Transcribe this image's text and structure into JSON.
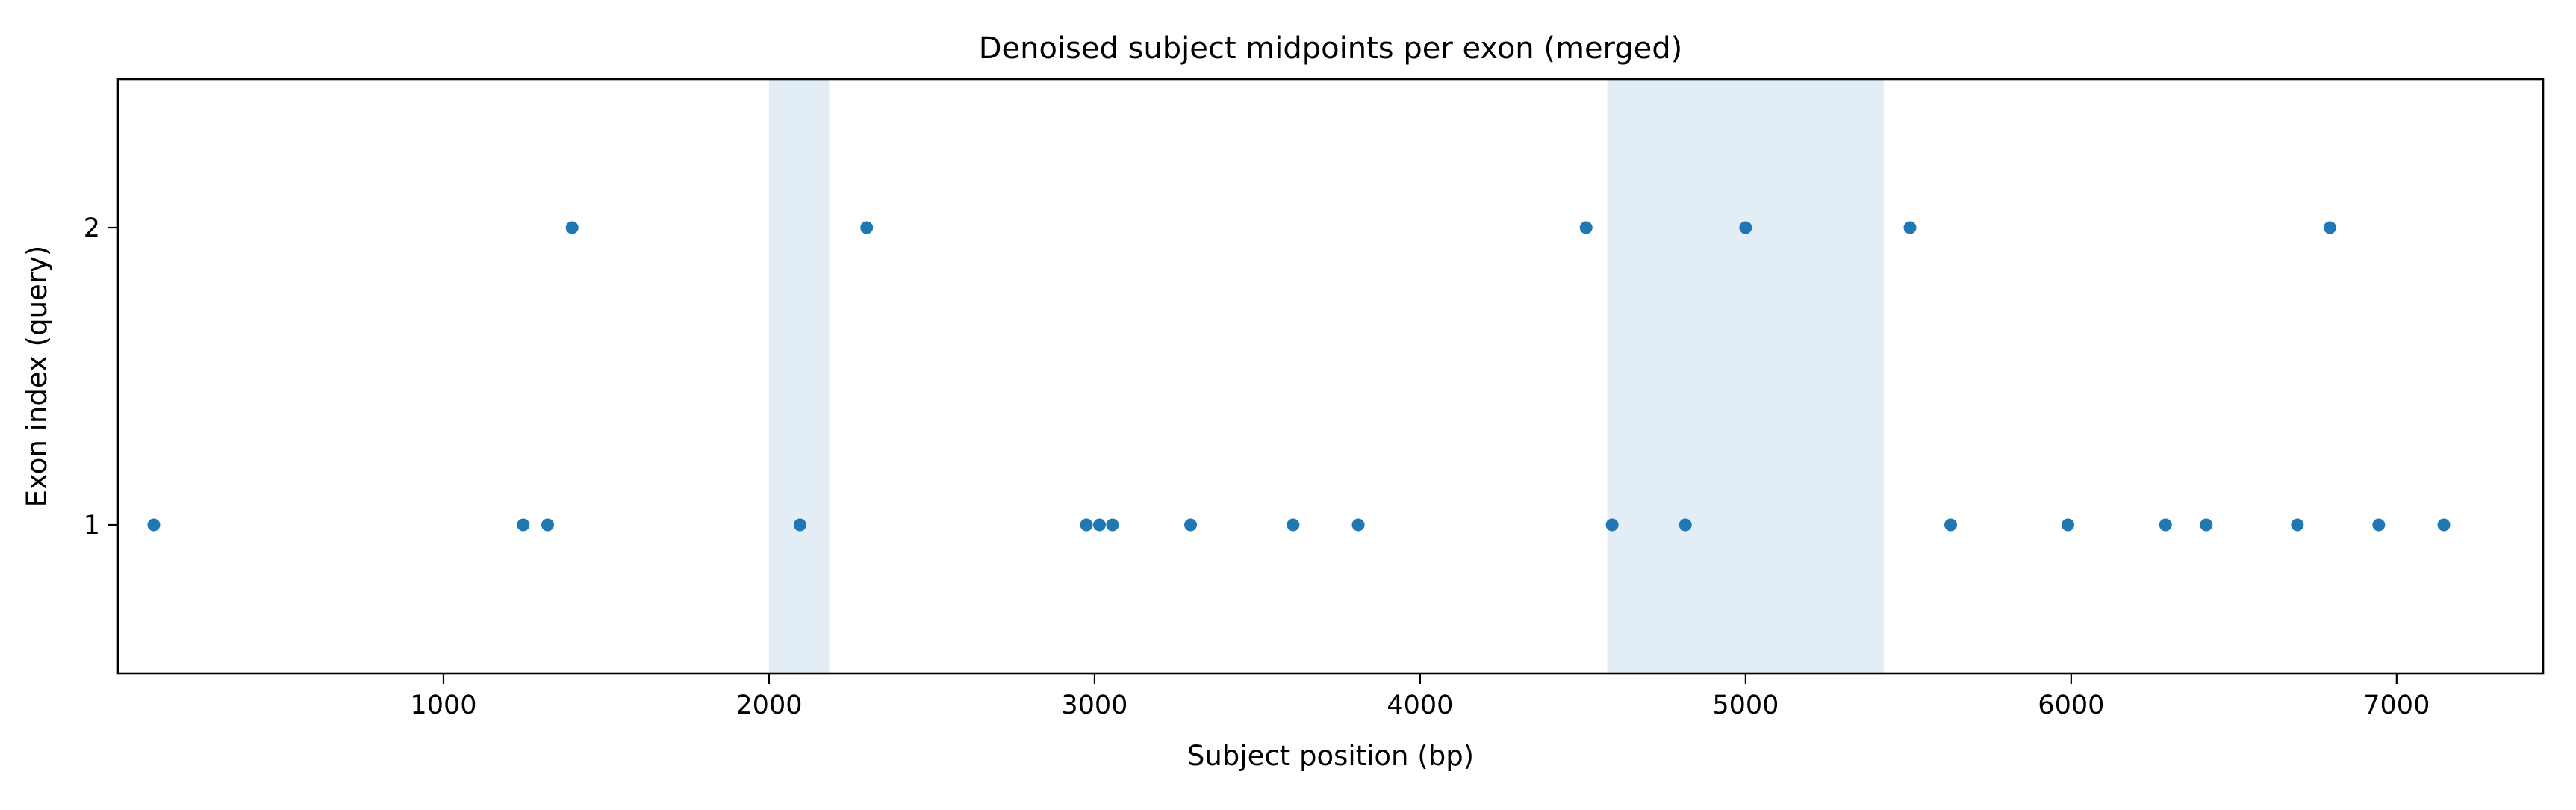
{
  "chart_data": {
    "type": "scatter",
    "title": "Denoised subject midpoints per exon (merged)",
    "xlabel": "Subject position (bp)",
    "ylabel": "Exon index (query)",
    "xlim": [
      0,
      7450
    ],
    "ylim": [
      0.5,
      2.5
    ],
    "grid": false,
    "x_ticks": [
      1000,
      2000,
      3000,
      4000,
      5000,
      6000,
      7000
    ],
    "y_ticks": [
      1,
      2
    ],
    "point_color": "#1f77b4",
    "band_color": "#c6dcec",
    "shaded_regions": [
      {
        "x_start": 2000,
        "x_end": 2185
      },
      {
        "x_start": 4575,
        "x_end": 5425
      }
    ],
    "points": [
      {
        "x": 110,
        "y": 1
      },
      {
        "x": 1245,
        "y": 1
      },
      {
        "x": 1320,
        "y": 1
      },
      {
        "x": 2095,
        "y": 1
      },
      {
        "x": 2975,
        "y": 1
      },
      {
        "x": 3015,
        "y": 1
      },
      {
        "x": 3055,
        "y": 1
      },
      {
        "x": 3295,
        "y": 1
      },
      {
        "x": 3610,
        "y": 1
      },
      {
        "x": 3810,
        "y": 1
      },
      {
        "x": 4590,
        "y": 1
      },
      {
        "x": 4815,
        "y": 1
      },
      {
        "x": 5630,
        "y": 1
      },
      {
        "x": 5990,
        "y": 1
      },
      {
        "x": 6290,
        "y": 1
      },
      {
        "x": 6415,
        "y": 1
      },
      {
        "x": 6695,
        "y": 1
      },
      {
        "x": 6945,
        "y": 1
      },
      {
        "x": 7145,
        "y": 1
      },
      {
        "x": 1395,
        "y": 2
      },
      {
        "x": 2300,
        "y": 2
      },
      {
        "x": 4510,
        "y": 2
      },
      {
        "x": 5000,
        "y": 2
      },
      {
        "x": 5505,
        "y": 2
      },
      {
        "x": 6795,
        "y": 2
      }
    ]
  }
}
